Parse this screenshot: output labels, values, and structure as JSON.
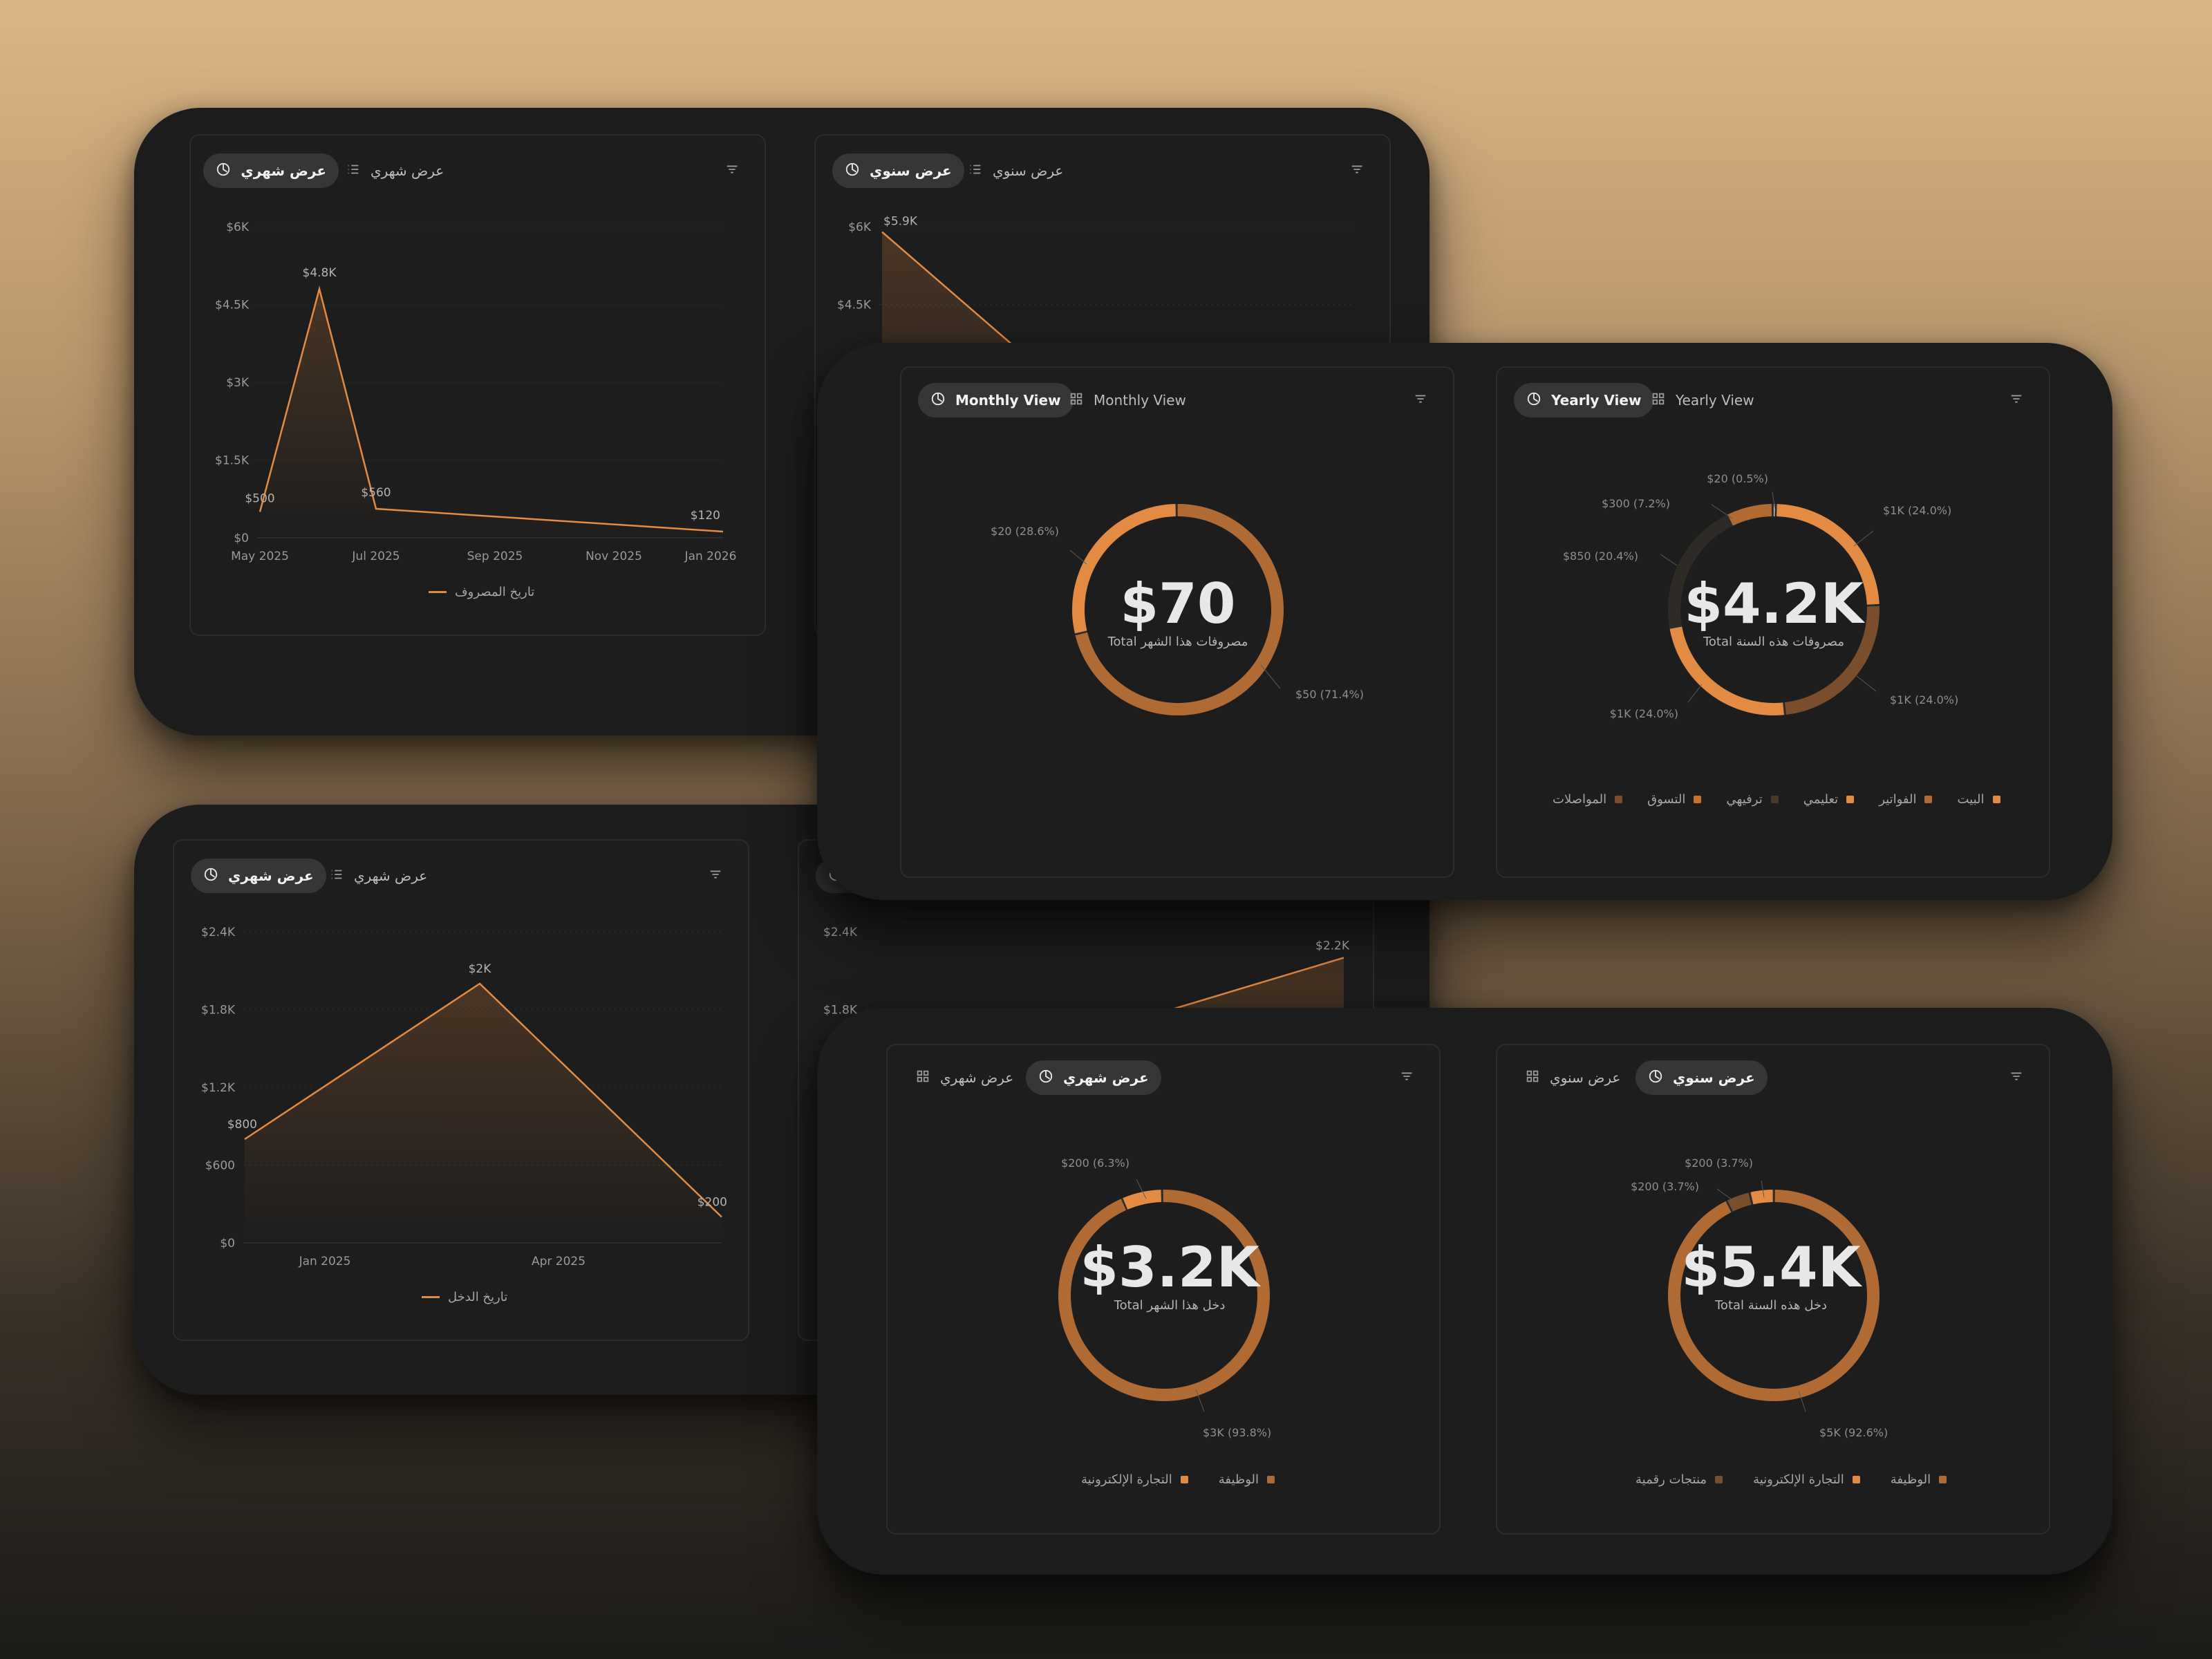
{
  "toggles": {
    "monthly_ar": "عرض شهري",
    "yearly_ar": "عرض سنوي",
    "monthly_en": "Monthly View",
    "yearly_en": "Yearly View"
  },
  "colors": {
    "accent": "#e38b42",
    "brown": "#b06b35",
    "dark_brown": "#7a4e2c",
    "deep_brown": "#4a3a2a",
    "card_bg": "#1d1d1d",
    "board_bg": "#1c1c1c"
  },
  "icons": {
    "active_toggle": "pie-chart-icon",
    "list_toggle": "list-icon",
    "grid_toggle": "grid-icon",
    "filter": "filter-icon"
  },
  "expense_monthly": {
    "legend": "تاريخ المصروف",
    "chart_data": {
      "type": "area",
      "x": [
        "May 2025",
        "Jun 2025",
        "Jul 2025",
        "Jan 2026"
      ],
      "values": [
        500,
        4800,
        560,
        120
      ],
      "point_labels": [
        "$500",
        "$4.8K",
        "$560",
        "$120"
      ],
      "x_ticks": [
        "May 2025",
        "Jul 2025",
        "Sep 2025",
        "Nov 2025",
        "Jan 2026"
      ],
      "y_ticks": [
        "$0",
        "$1.5K",
        "$3K",
        "$4.5K",
        "$6K"
      ],
      "ylim": [
        0,
        6000
      ],
      "grid": true
    }
  },
  "expense_yearly": {
    "chart_data": {
      "type": "area",
      "values": [
        5900
      ],
      "point_labels": [
        "$5.9K"
      ],
      "y_ticks": [
        "$4.5K",
        "$6K"
      ],
      "ylim": [
        0,
        6000
      ],
      "grid": true
    }
  },
  "expense_donut_monthly": {
    "total": "$70",
    "subtitle": "Total مصروفات هذا الشهر",
    "chart_data": {
      "type": "pie",
      "labels": [
        "$20 (28.6%)",
        "$50 (71.4%)"
      ],
      "values": [
        20,
        50
      ],
      "colors": [
        "#e38b42",
        "#b06b35"
      ]
    }
  },
  "expense_donut_yearly": {
    "total": "$4.2K",
    "subtitle": "Total مصروفات هذه السنة",
    "legend": [
      {
        "label": "البيت",
        "color": "#e38b42"
      },
      {
        "label": "الفواتير",
        "color": "#b06b35"
      },
      {
        "label": "تعليمي",
        "color": "#e38b42"
      },
      {
        "label": "ترفيهي",
        "color": "#4a3a2a"
      },
      {
        "label": "التسوق",
        "color": "#c9722f"
      },
      {
        "label": "المواصلات",
        "color": "#7a4e2c"
      }
    ],
    "chart_data": {
      "type": "pie",
      "labels": [
        "$20 (0.5%)",
        "$1K (24.0%)",
        "$1K (24.0%)",
        "$1K (24.0%)",
        "$850 (20.4%)",
        "$300 (7.2%)"
      ],
      "values": [
        20,
        1000,
        1000,
        1000,
        850,
        300
      ],
      "colors": [
        "#d9d9d9",
        "#e38b42",
        "#7a4e2c",
        "#e38b42",
        "#2e2a25",
        "#b06b35"
      ]
    }
  },
  "income_monthly": {
    "legend": "تاريخ الدخل",
    "chart_data": {
      "type": "area",
      "values": [
        800,
        2000,
        200
      ],
      "point_labels": [
        "$800",
        "$2K",
        "$200"
      ],
      "x_ticks": [
        "Jan 2025",
        "Apr 2025"
      ],
      "y_ticks": [
        "$0",
        "$600",
        "$1.2K",
        "$1.8K",
        "$2.4K"
      ],
      "ylim": [
        0,
        2400
      ],
      "grid": true
    }
  },
  "income_yearly": {
    "chart_data": {
      "type": "area",
      "values": [
        2200
      ],
      "point_labels": [
        "$2.2K"
      ],
      "y_ticks": [
        "$1.8K",
        "$2.4K"
      ],
      "ylim": [
        0,
        2400
      ],
      "grid": true
    }
  },
  "income_donut_monthly": {
    "total": "$3.2K",
    "subtitle": "Total دخل هذا الشهر",
    "legend": [
      {
        "label": "الوظيفة",
        "color": "#b06b35"
      },
      {
        "label": "التجارة الإلكترونية",
        "color": "#e38b42"
      }
    ],
    "chart_data": {
      "type": "pie",
      "labels": [
        "$200 (6.3%)",
        "$3K (93.8%)"
      ],
      "values": [
        200,
        3000
      ],
      "colors": [
        "#e38b42",
        "#b06b35"
      ]
    }
  },
  "income_donut_yearly": {
    "total": "$5.4K",
    "subtitle": "Total دخل هذه السنة",
    "legend": [
      {
        "label": "الوظيفة",
        "color": "#b06b35"
      },
      {
        "label": "التجارة الإلكترونية",
        "color": "#e38b42"
      },
      {
        "label": "منتجات رقمية",
        "color": "#7a4e2c"
      }
    ],
    "chart_data": {
      "type": "pie",
      "labels": [
        "$200 (3.7%)",
        "$200 (3.7%)",
        "$5K (92.6%)"
      ],
      "values": [
        200,
        200,
        5000
      ],
      "colors": [
        "#7a4e2c",
        "#e38b42",
        "#b06b35"
      ]
    }
  }
}
